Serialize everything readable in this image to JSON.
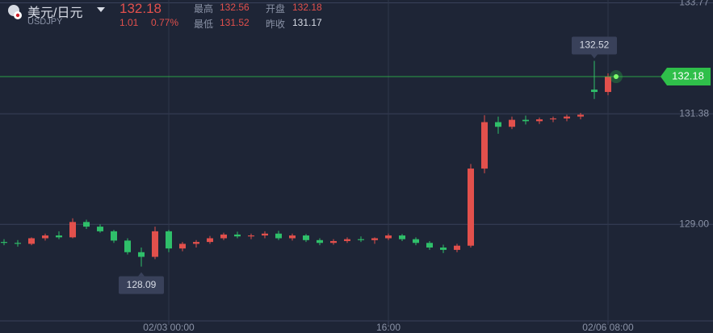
{
  "header": {
    "pair": "美元/日元",
    "symbol": "USDJPY",
    "price": "132.18",
    "change": "1.01",
    "change_pct": "0.77%",
    "high_label": "最高",
    "high": "132.56",
    "open_label": "开盘",
    "open": "132.18",
    "low_label": "最低",
    "low": "131.52",
    "prev_label": "昨收",
    "prev": "131.17"
  },
  "chart_data": {
    "type": "candlestick",
    "categories": [
      null,
      null,
      null,
      null,
      null,
      null,
      null,
      null,
      null,
      null,
      null,
      null,
      "02/03 00:00",
      null,
      null,
      null,
      null,
      null,
      null,
      null,
      null,
      null,
      null,
      null,
      null,
      null,
      null,
      null,
      "16:00",
      null,
      null,
      null,
      null,
      null,
      null,
      null,
      null,
      null,
      null,
      null,
      null,
      null,
      null,
      null,
      "02/06 08:00"
    ],
    "open": [
      128.62,
      128.6,
      128.58,
      128.7,
      128.76,
      128.72,
      129.05,
      128.95,
      128.85,
      128.65,
      128.4,
      128.3,
      128.85,
      128.48,
      128.58,
      128.62,
      128.7,
      128.78,
      128.74,
      128.76,
      128.8,
      128.7,
      128.76,
      128.66,
      128.6,
      128.64,
      128.68,
      128.66,
      128.7,
      128.76,
      128.68,
      128.6,
      128.5,
      128.45,
      128.54,
      130.2,
      131.2,
      131.1,
      131.25,
      131.22,
      131.26,
      131.28,
      131.32,
      131.9,
      131.85
    ],
    "high": [
      128.68,
      128.66,
      128.72,
      128.8,
      128.85,
      129.13,
      129.1,
      129.0,
      128.88,
      128.7,
      128.5,
      128.95,
      128.88,
      128.62,
      128.66,
      128.75,
      128.82,
      128.84,
      128.8,
      128.85,
      128.86,
      128.8,
      128.79,
      128.7,
      128.68,
      128.72,
      128.74,
      128.72,
      128.8,
      128.79,
      128.72,
      128.64,
      128.56,
      128.58,
      130.3,
      131.35,
      131.32,
      131.32,
      131.34,
      131.3,
      131.32,
      131.36,
      131.4,
      132.52,
      132.25
    ],
    "low": [
      128.55,
      128.52,
      128.55,
      128.65,
      128.68,
      128.7,
      128.9,
      128.82,
      128.6,
      128.35,
      128.09,
      128.25,
      128.4,
      128.42,
      128.5,
      128.58,
      128.66,
      128.7,
      128.68,
      128.7,
      128.66,
      128.65,
      128.62,
      128.55,
      128.56,
      128.6,
      128.62,
      128.58,
      128.66,
      128.64,
      128.55,
      128.45,
      128.38,
      128.4,
      128.5,
      130.1,
      130.95,
      131.05,
      131.15,
      131.16,
      131.2,
      131.22,
      131.26,
      131.7,
      131.78
    ],
    "close": [
      128.6,
      128.58,
      128.7,
      128.76,
      128.72,
      129.05,
      128.95,
      128.85,
      128.65,
      128.4,
      128.3,
      128.85,
      128.48,
      128.58,
      128.62,
      128.7,
      128.78,
      128.74,
      128.76,
      128.8,
      128.7,
      128.76,
      128.66,
      128.6,
      128.64,
      128.68,
      128.66,
      128.7,
      128.76,
      128.68,
      128.6,
      128.5,
      128.45,
      128.54,
      130.2,
      131.2,
      131.1,
      131.25,
      131.22,
      131.26,
      131.28,
      131.32,
      131.36,
      131.85,
      132.18
    ],
    "last": 132.18,
    "up_color": "#e2504c",
    "down_color": "#2fbf6a",
    "last_color": "#2fbf4a",
    "ylim": [
      126.66,
      133.83
    ],
    "yticks": [
      {
        "value": 129,
        "label": "129.00"
      },
      131.38,
      133.77
    ],
    "grid": true
  }
}
